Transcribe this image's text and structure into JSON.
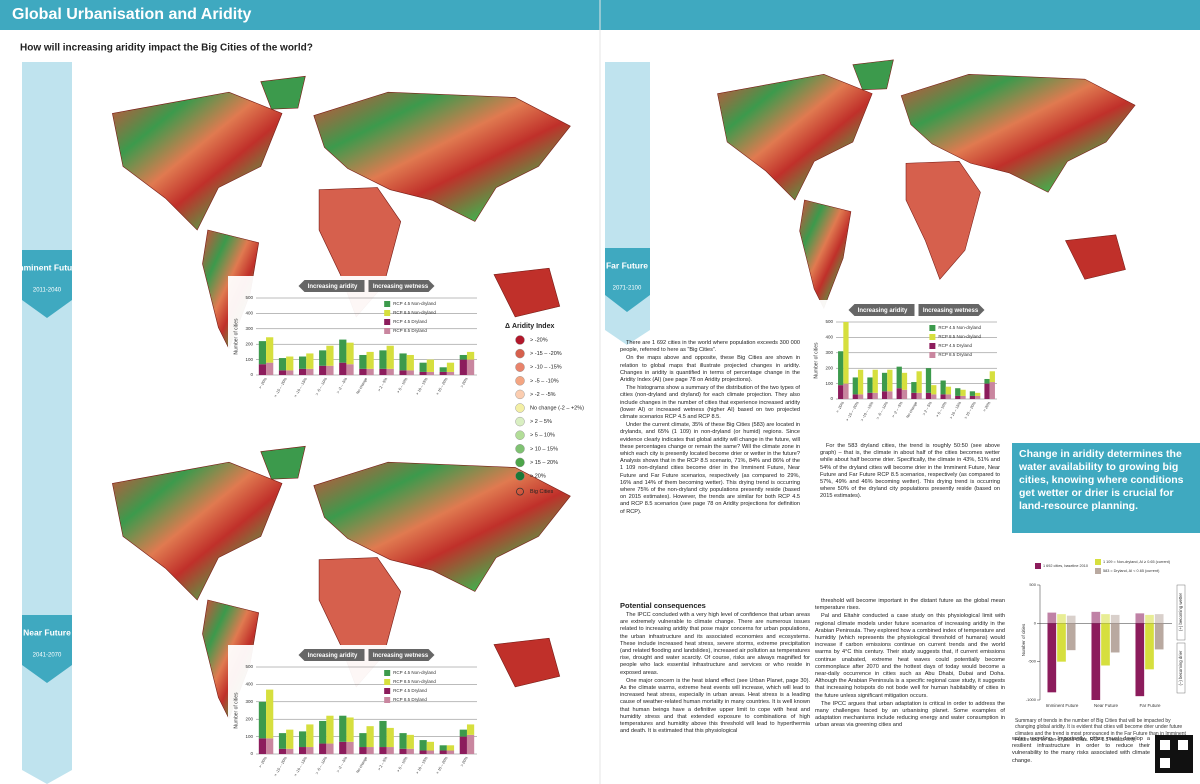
{
  "header": {
    "title": "Global Urbanisation and Aridity",
    "subtitle": "How will increasing aridity impact the Big Cities of the world?"
  },
  "periods": [
    {
      "name": "Imminent Future",
      "years": "2011-2040"
    },
    {
      "name": "Near Future",
      "years": "2041-2070"
    },
    {
      "name": "Far Future",
      "years": "2071-2100"
    }
  ],
  "charts": [
    {
      "type": "bar",
      "arrow_left": "Increasing aridity",
      "arrow_right": "Increasing wetness",
      "ylabel": "Number of cities",
      "categories": [
        "> -20%",
        "> -15 – -20%",
        "> -10 – -15%",
        "> -5 – -10%",
        "> -2 – -5%",
        "No change",
        "> 2 – 5%",
        "> 5 – 10%",
        "> 10 – 15%",
        "> 15 – 20%",
        "> 20%"
      ],
      "ylim": [
        0,
        500
      ],
      "yticks": [
        0,
        100,
        200,
        300,
        400,
        500
      ],
      "series": [
        {
          "name": "RCP 4.5 Non-dryland",
          "color": "#3c9a4c",
          "values": [
            150,
            80,
            80,
            100,
            150,
            90,
            120,
            110,
            60,
            30,
            30
          ]
        },
        {
          "name": "RCP 8.5 Non-dryland",
          "color": "#d6df3e",
          "values": [
            165,
            90,
            100,
            130,
            140,
            110,
            150,
            100,
            80,
            60,
            50
          ]
        },
        {
          "name": "RCP 4.5 Dryland",
          "color": "#8c1c5c",
          "values": [
            70,
            30,
            40,
            60,
            80,
            40,
            40,
            30,
            20,
            20,
            100
          ]
        },
        {
          "name": "RCP 8.5 Dryland",
          "color": "#c9869f",
          "values": [
            80,
            30,
            40,
            60,
            70,
            40,
            40,
            30,
            20,
            20,
            100
          ]
        }
      ]
    },
    {
      "type": "bar",
      "arrow_left": "Increasing aridity",
      "arrow_right": "Increasing wetness",
      "ylabel": "Number of cities",
      "categories": [
        "> -20%",
        "> -15 – -20%",
        "> -10 – -15%",
        "> -5 – -10%",
        "> -2 – -5%",
        "No change",
        "> 2 – 5%",
        "> 5 – 10%",
        "> 10 – 15%",
        "> 15 – 20%",
        "> 20%"
      ],
      "ylim": [
        0,
        500
      ],
      "yticks": [
        0,
        100,
        200,
        300,
        400,
        500
      ],
      "series": [
        {
          "name": "RCP 4.5 Non-dryland",
          "color": "#3c9a4c",
          "values": [
            210,
            90,
            90,
            130,
            150,
            80,
            150,
            90,
            60,
            30,
            40
          ]
        },
        {
          "name": "RCP 8.5 Non-dryland",
          "color": "#d6df3e",
          "values": [
            280,
            110,
            130,
            160,
            140,
            120,
            110,
            80,
            50,
            30,
            60
          ]
        },
        {
          "name": "RCP 4.5 Dryland",
          "color": "#8c1c5c",
          "values": [
            90,
            30,
            40,
            60,
            70,
            40,
            40,
            30,
            20,
            20,
            100
          ]
        },
        {
          "name": "RCP 8.5 Dryland",
          "color": "#c9869f",
          "values": [
            90,
            30,
            40,
            60,
            70,
            40,
            40,
            30,
            20,
            20,
            110
          ]
        }
      ]
    },
    {
      "type": "bar",
      "arrow_left": "Increasing aridity",
      "arrow_right": "Increasing wetness",
      "ylabel": "Number of cities",
      "categories": [
        "> -20%",
        "> -15 – -20%",
        "> -10 – -15%",
        "> -5 – -10%",
        "> -2 – -5%",
        "No change",
        "> 2 – 5%",
        "> 5 – 10%",
        "> 10 – 15%",
        "> 15 – 20%",
        "> 20%"
      ],
      "ylim": [
        0,
        500
      ],
      "yticks": [
        0,
        100,
        200,
        300,
        400,
        500
      ],
      "series": [
        {
          "name": "RCP 4.5 Non-dryland",
          "color": "#3c9a4c",
          "values": [
            220,
            110,
            100,
            120,
            140,
            70,
            160,
            90,
            50,
            30,
            30
          ]
        },
        {
          "name": "RCP 8.5 Non-dryland",
          "color": "#d6df3e",
          "values": [
            400,
            160,
            150,
            140,
            110,
            140,
            60,
            50,
            40,
            20,
            70
          ]
        },
        {
          "name": "RCP 4.5 Dryland",
          "color": "#8c1c5c",
          "values": [
            90,
            30,
            40,
            50,
            70,
            40,
            40,
            30,
            20,
            20,
            100
          ]
        },
        {
          "name": "RCP 8.5 Dryland",
          "color": "#c9869f",
          "values": [
            100,
            30,
            40,
            50,
            60,
            40,
            30,
            30,
            20,
            20,
            110
          ]
        }
      ]
    }
  ],
  "aridity_legend": {
    "title": "Δ Aridity Index",
    "items": [
      {
        "label": "> -20%",
        "color": "#b2182b"
      },
      {
        "label": "> -15 – -20%",
        "color": "#d6604d"
      },
      {
        "label": "> -10 – -15%",
        "color": "#e9836b"
      },
      {
        "label": "> -5 – -10%",
        "color": "#f4a582"
      },
      {
        "label": "> -2 – -5%",
        "color": "#fbcdb0"
      },
      {
        "label": "No change (-2 – +2%)",
        "color": "#f3efa4"
      },
      {
        "label": "> 2 – 5%",
        "color": "#d9efc2"
      },
      {
        "label": "> 5 – 10%",
        "color": "#b2dd98"
      },
      {
        "label": "> 10 – 15%",
        "color": "#7fc272"
      },
      {
        "label": "> 15 – 20%",
        "color": "#4da54a"
      },
      {
        "label": "> 20%",
        "color": "#1b7837"
      }
    ],
    "cities": "Big Cities"
  },
  "text": {
    "intro": [
      "There are 1 692 cities in the world where population exceeds 300 000 people, referred to here as “Big Cities”.",
      "On the maps above and opposite, these Big Cities are shown in relation to global maps that illustrate projected changes in aridity. Changes in aridity is quantified in terms of percentage change in the Aridity Index (AI) (see page 78 on Aridity projections).",
      "The histograms show a summary of the distribution of the two types of cities (non-dryland and dryland) for each climate projection. They also include changes in the number of cities that experience increased aridity (lower AI) or increased wetness (higher AI) based on two projected climate scenarios RCP 4.5 and RCP 8.5.",
      "Under the current climate, 35% of these Big Cities (583) are located in drylands, and 65% (1 109) in non-dryland (or humid) regions. Since evidence clearly indicates that global aridity will change in the future, will these percentages change or remain the same? Will the climate zone in which each city is presently located become drier or wetter in the future? Analysis shows that in the RCP 8.5 scenario, 71%, 84% and 86% of the 1 109 non-dryland cities become drier in the Imminent Future, Near Future and Far Future scenarios, respectively (as compared to 29%, 16% and 14% of them becoming wetter). This drying trend is occurring where 75% of the non-dryland city populations presently reside (based on 2015 estimates). However, the trends are similar for both RCP 4.5 and RCP 8.5 scenarios (see page 78 on Aridity projections for definition of RCP)."
    ],
    "dryland": "For the 583 dryland cities, the trend is roughly 50:50 (see above graph) – that is, the climate in about half of the cities becomes wetter while about half become drier. Specifically, the climate in 43%, 51% and 54% of the dryland cities will become drier in the Imminent Future, Near Future and Far Future RCP 8.5 scenarios, respectively (as compared to 57%, 49% and 46% becoming wetter). This drying trend is occurring where 50% of the dryland city populations presently reside (based on 2015 estimates).",
    "consequences_title": "Potential consequences",
    "consequences": [
      "The IPCC concluded with a very high level of confidence that urban areas are extremely vulnerable to climate change. There are numerous issues related to increasing aridity that pose major concerns for urban populations, the urban infrastructure and its associated economies and ecosystems. These include increased heat stress, severe storms, extreme precipitation (and related flooding and landslides), increased air pollution as temperatures rise, drought and water scarcity. Of course, risks are always magnified for people who lack essential infrastructure and services or who reside in exposed areas.",
      "One major concern is the heat island effect (see Urban Planet, page 30). As the climate warms, extreme heat events will increase, which will lead to increased heat stress, especially in urban areas. Heat stress is a leading cause of weather-related human mortality in many countries. It is well known that human beings have a definitive upper limit to cope with heat and humidity stress and that extended exposure to combinations of high temperatures and humidity above this threshold will lead to hyperthermia and death. It is estimated that this physiological",
      "threshold will become important in the distant future as the global mean temperature rises.",
      "Pal and Eltahir conducted a case study on this physiological limit with regional climate models under future scenarios of increasing aridity in the Arabian Peninsula. They explored how a combined index of temperature and humidity (which represents the physiological threshold of humans) would increase if carbon emissions continue on current trends and the world warms by 4°C this century. Their study suggests that, if current emissions continue unabated, extreme heat waves could potentially become commonplace after 2070 and the hottest days of today would become a near-daily occurrence in cities such as Abu Dhabi, Dubai and Doha. Although the Arabian Peninsula is a specific regional case study, it suggests that increasing hotspots do not bode well for human habitability of cities in the future unless significant mitigation occurs.",
      "The IPCC argues that urban adaptation is critical in order to address the many challenges faced by an urbanising planet. Some examples of adaptation mechanisms include reducing energy and water consumption in urban areas via greening cities and"
    ],
    "closing": "water recycling. Importantly, cities must develop a resilient infrastructure in order to reduce their vulnerability to the many risks associated with climate change.",
    "callout": "Change in aridity determines the water availability to growing big cities, knowing where conditions get wetter or drier is crucial for land-resource planning.",
    "summary_caption": "Summary of trends in the number of Big Cities that will be impacted by changing global aridity. It is evident that cities will become drier under future climates and the trend is most pronounced in the Far Future than in Imminent Future and for non-dryland cities. RCP 8.5 results only."
  },
  "summary_chart": {
    "type": "bar",
    "ylabel": "Number of cities",
    "upper": "(+) becoming wetter",
    "lower": "(–) becoming drier",
    "categories": [
      "Imminent Future",
      "Near Future",
      "Far Future"
    ],
    "ylim": [
      -1000,
      500
    ],
    "yticks": [
      -1000,
      -500,
      0,
      500
    ],
    "series": [
      {
        "name": "1 692 cities, baseline 2010",
        "color": "#8c1c5c",
        "wetter": [
          140,
          150,
          130
        ],
        "drier": [
          -900,
          -1000,
          -950
        ]
      },
      {
        "name": "1 109 = Non-dryland, AI ≥ 0.65 (current)",
        "color": "#d6df3e",
        "wetter": [
          120,
          120,
          110
        ],
        "drier": [
          -500,
          -550,
          -600
        ]
      },
      {
        "name": "583 = Dryland, AI < 0.65 (current)",
        "color": "#b9a9a0",
        "wetter": [
          100,
          110,
          120
        ],
        "drier": [
          -350,
          -380,
          -340
        ]
      }
    ]
  }
}
